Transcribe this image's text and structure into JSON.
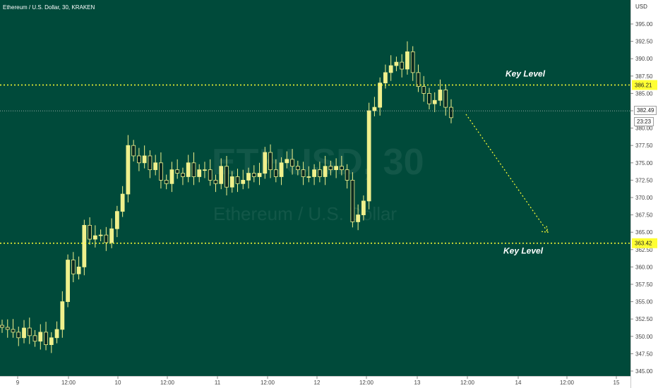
{
  "header": {
    "title": "Ethereum / U.S. Dollar, 30, KRAKEN"
  },
  "watermark": {
    "symbol": "ETHUSD, 30",
    "name": "Ethereum / U.S. Dollar"
  },
  "price_axis": {
    "currency": "USD",
    "current_price": "382.49",
    "countdown": "23:23"
  },
  "annotations": {
    "key_level_upper": "Key Level",
    "key_level_lower": "Key Level"
  },
  "colors": {
    "background": "#004a3a",
    "candle": "#f0f08c",
    "key_level": "#ffff33",
    "label_bg": "#ffff33",
    "arrow": "#ffff33"
  },
  "chart_data": {
    "type": "candlestick",
    "interval": "30",
    "exchange": "KRAKEN",
    "ylim": [
      345,
      397.5
    ],
    "y_ticks": [
      345.0,
      347.5,
      350.0,
      352.5,
      355.0,
      357.5,
      360.0,
      362.5,
      365.0,
      367.5,
      370.0,
      372.5,
      375.0,
      377.5,
      380.0,
      382.5,
      385.0,
      387.5,
      390.0,
      392.5,
      395.0
    ],
    "x_ticks": [
      "9",
      "12:00",
      "10",
      "12:00",
      "11",
      "12:00",
      "12",
      "12:00",
      "13",
      "12:00",
      "14",
      "12:00",
      "15"
    ],
    "horizontal_lines": [
      {
        "name": "Key Level",
        "price": 386.21
      },
      {
        "name": "Key Level",
        "price": 363.42
      }
    ],
    "current_price_line": 382.49,
    "projection_arrow": {
      "from_price": 382.0,
      "to_price": 365.0
    },
    "ohlc_path": [
      351.3,
      351.0,
      350.6,
      349.8,
      351.2,
      350.1,
      349.3,
      350.6,
      348.8,
      349.8,
      351.0,
      355.0,
      361.0,
      359.0,
      360.0,
      366.0,
      364.0,
      364.5,
      364.6,
      363.5,
      365.5,
      368.0,
      370.5,
      377.5,
      376.0,
      375.0,
      376.0,
      374.0,
      375.0,
      372.5,
      372.0,
      374.0,
      373.5,
      373.0,
      375.0,
      373.0,
      374.0,
      374.0,
      372.5,
      372.0,
      374.5,
      371.5,
      373.0,
      372.0,
      372.5,
      373.5,
      373.0,
      373.5,
      376.5,
      374.0,
      373.0,
      375.0,
      375.5,
      374.5,
      374.0,
      373.0,
      373.0,
      374.0,
      373.0,
      374.5,
      374.0,
      374.5,
      374.0,
      372.5,
      366.5,
      367.5,
      369.5,
      382.5,
      383.0,
      386.5,
      388.0,
      389.0,
      389.5,
      388.5,
      391.0,
      388.0,
      386.0,
      385.0,
      383.5,
      384.0,
      385.5,
      383.0,
      381.5
    ]
  }
}
